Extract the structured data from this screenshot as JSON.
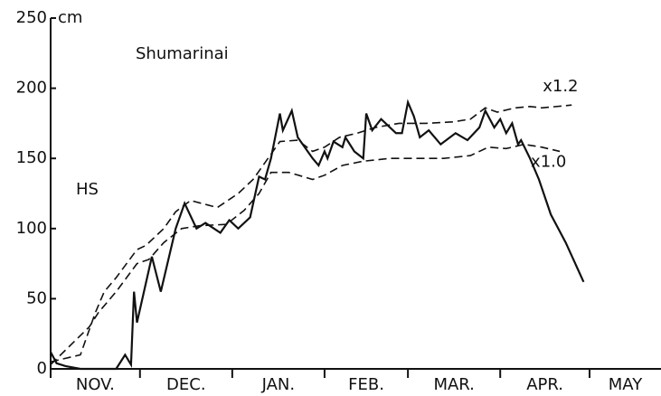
{
  "chart_data": {
    "type": "line",
    "title": "Shumarinai",
    "ylabel": "HS",
    "yunit": "cm",
    "xlim": [
      0,
      205
    ],
    "xticks": [
      0,
      30,
      61,
      92,
      120,
      151,
      181
    ],
    "categories": [
      "NOV.",
      "DEC.",
      "JAN.",
      "FEB.",
      "MAR.",
      "APR.",
      "MAY"
    ],
    "ylim": [
      0,
      250
    ],
    "yticks": [
      0,
      50,
      100,
      150,
      200,
      250
    ],
    "series": [
      {
        "color": "#111111",
        "dash": false,
        "x": [
          0,
          2,
          5,
          10,
          22,
          25,
          27,
          28,
          29,
          34,
          37,
          42,
          45,
          49,
          52,
          57,
          60,
          63,
          67,
          70,
          72,
          74,
          77,
          78,
          81,
          83,
          88,
          90,
          92,
          93,
          95,
          98,
          99,
          102,
          105,
          106,
          108,
          111,
          114,
          116,
          118,
          120,
          122,
          124,
          127,
          131,
          136,
          140,
          144,
          146,
          149,
          151,
          153,
          155,
          157,
          158,
          161,
          164,
          168,
          173,
          179
        ],
        "values": [
          12,
          4,
          2,
          0,
          0,
          10,
          3,
          55,
          33,
          80,
          55,
          100,
          118,
          100,
          104,
          97,
          106,
          100,
          108,
          137,
          135,
          150,
          182,
          170,
          184,
          165,
          150,
          145,
          155,
          150,
          162,
          158,
          165,
          155,
          150,
          182,
          170,
          178,
          172,
          168,
          168,
          190,
          180,
          165,
          170,
          160,
          168,
          163,
          172,
          184,
          172,
          178,
          168,
          175,
          160,
          163,
          150,
          135,
          110,
          90,
          62
        ]
      },
      {
        "name": "x1.2",
        "color": "#111111",
        "dash": true,
        "x": [
          0,
          10,
          15,
          18,
          22,
          29,
          32,
          38,
          42,
          47,
          56,
          63,
          68,
          73,
          77,
          83,
          88,
          92,
          97,
          103,
          109,
          117,
          126,
          135,
          141,
          146,
          150,
          156,
          161,
          165,
          175
        ],
        "values": [
          5,
          10,
          40,
          55,
          65,
          85,
          88,
          100,
          112,
          120,
          115,
          125,
          135,
          150,
          162,
          163,
          155,
          158,
          165,
          168,
          172,
          175,
          175,
          176,
          178,
          186,
          183,
          186,
          187,
          186,
          188
        ]
      },
      {
        "name": "x1.0",
        "color": "#111111",
        "dash": true,
        "x": [
          0,
          13,
          16,
          22,
          29,
          33,
          38,
          44,
          50,
          59,
          65,
          70,
          74,
          80,
          88,
          92,
          98,
          105,
          114,
          123,
          132,
          141,
          147,
          153,
          159,
          165,
          171
        ],
        "values": [
          3,
          30,
          40,
          55,
          75,
          78,
          90,
          100,
          102,
          103,
          113,
          125,
          140,
          140,
          135,
          138,
          145,
          148,
          150,
          150,
          150,
          152,
          158,
          157,
          160,
          158,
          155
        ]
      }
    ]
  }
}
